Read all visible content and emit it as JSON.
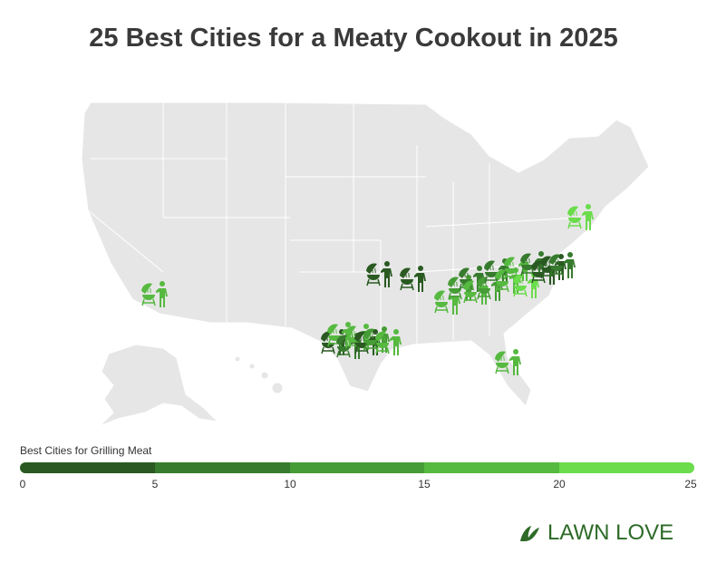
{
  "title": "25 Best Cities for a Meaty Cookout in 2025",
  "legend": {
    "title": "Best Cities for Grilling Meat",
    "ticks": [
      "0",
      "5",
      "10",
      "15",
      "20",
      "25"
    ],
    "colors": [
      "#2a5a22",
      "#377b2e",
      "#469c36",
      "#56b940",
      "#6bdc4b"
    ]
  },
  "map": {
    "land_color": "#e6e6e6",
    "marker_icon": "grill-person-icon"
  },
  "logo": {
    "text": "LAWN LOVE",
    "color": "#2d6a27"
  }
}
